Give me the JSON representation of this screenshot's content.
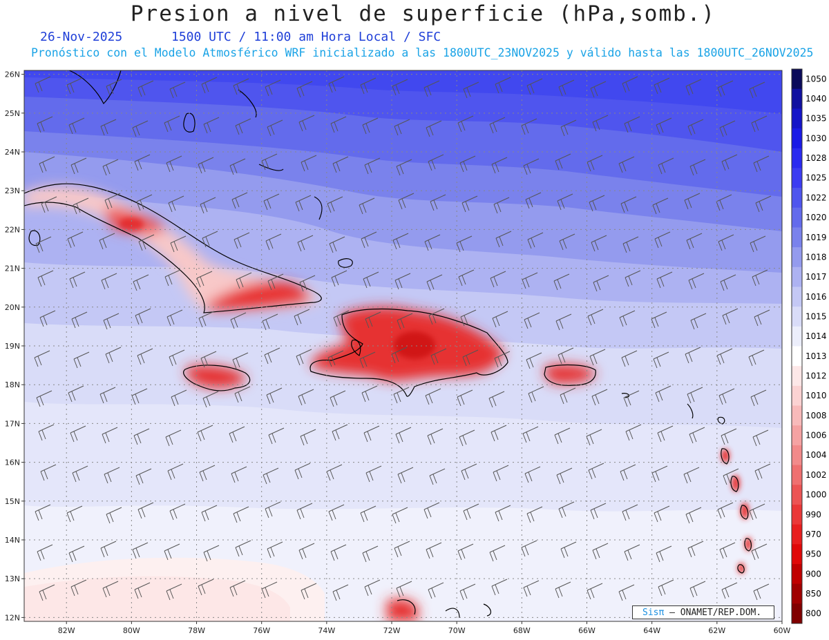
{
  "header": {
    "title": "Presion a nivel de superficie (hPa,somb.)",
    "date": "26-Nov-2025",
    "time_line": "1500 UTC / 11:00 am Hora Local / SFC",
    "model_line": "Pronóstico con el Modelo Atmosférico WRF inicializado a las 1800UTC_23NOV2025 y válido hasta las  1800UTC_26NOV2025"
  },
  "map": {
    "lon_labels": [
      "82W",
      "80W",
      "78W",
      "76W",
      "74W",
      "72W",
      "70W",
      "68W",
      "66W",
      "64W",
      "62W",
      "60W"
    ],
    "lat_labels": [
      "26N",
      "25N",
      "24N",
      "23N",
      "22N",
      "21N",
      "20N",
      "19N",
      "18N",
      "17N",
      "16N",
      "15N",
      "14N",
      "13N",
      "12N"
    ],
    "lon_range": [
      -83.3,
      -60
    ],
    "lat_range": [
      11.9,
      26.1
    ]
  },
  "colorbar": {
    "levels": [
      "1050",
      "1040",
      "1035",
      "1030",
      "1028",
      "1025",
      "1022",
      "1020",
      "1019",
      "1018",
      "1017",
      "1016",
      "1015",
      "1014",
      "1013",
      "1012",
      "1010",
      "1008",
      "1006",
      "1004",
      "1002",
      "1000",
      "990",
      "970",
      "950",
      "900",
      "850",
      "800"
    ],
    "colors": [
      "#0a0a5a",
      "#1010a0",
      "#1414c8",
      "#1a1ae6",
      "#2a2af0",
      "#3c3cf2",
      "#4f55ee",
      "#636bec",
      "#7a82ec",
      "#949bee",
      "#adb2f2",
      "#c4c8f5",
      "#d9dcf8",
      "#eceefb",
      "#ffffff",
      "#fde7e7",
      "#fbd2d2",
      "#f8baba",
      "#f5a2a2",
      "#f28a8a",
      "#ef7070",
      "#ec5454",
      "#ea3838",
      "#e81e1e",
      "#e00808",
      "#c00000",
      "#a00000",
      "#800000"
    ]
  },
  "credit": {
    "brand": "Sisπ",
    "text": "– ONAMET/REP.DOM."
  }
}
